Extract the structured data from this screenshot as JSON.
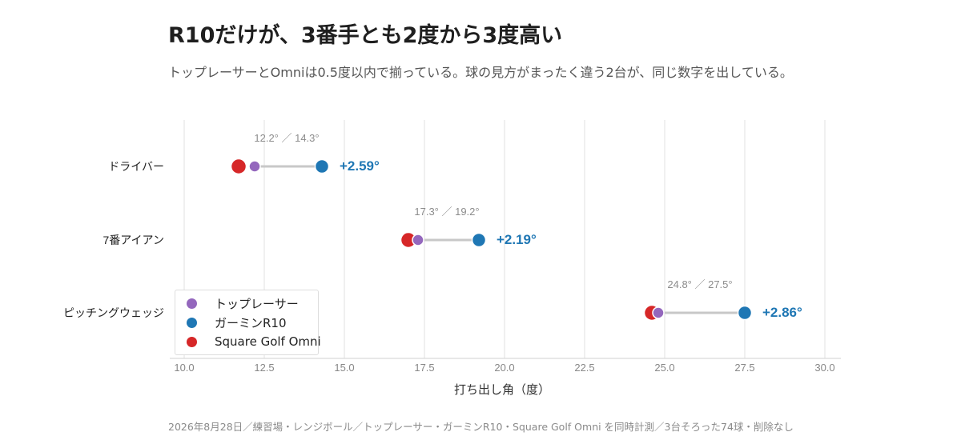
{
  "title": "R10だけが、3番手とも2度から3度高い",
  "subtitle": "トップレーサーとOmniは0.5度以内で揃っている。球の見方がまったく違う2台が、同じ数字を出している。",
  "footnote": "2026年8月28日／練習場・レンジボール／トップレーサー・ガーミンR10・Square Golf Omni を同時計測／3台そろった74球・削除なし",
  "legend": {
    "items": [
      {
        "label": "トップレーサー",
        "color": "#9467bd"
      },
      {
        "label": "ガーミンR10",
        "color": "#1f77b4"
      },
      {
        "label": "Square Golf Omni",
        "color": "#d62728"
      }
    ]
  },
  "chart_data": {
    "type": "dot",
    "xlabel": "打ち出し角（度）",
    "xlim": [
      9.8,
      30.5
    ],
    "xticks": [
      "10.0",
      "12.5",
      "15.0",
      "17.5",
      "20.0",
      "22.5",
      "25.0",
      "27.5",
      "30.0"
    ],
    "grid": true,
    "legend_position": "bottom-left",
    "categories": [
      "ドライバー",
      "7番アイアン",
      "ピッチングウェッジ"
    ],
    "series": [
      {
        "name": "トップレーサー",
        "color": "#9467bd",
        "values": [
          12.2,
          17.3,
          24.8
        ]
      },
      {
        "name": "ガーミンR10",
        "color": "#1f77b4",
        "values": [
          14.3,
          19.2,
          27.5
        ]
      },
      {
        "name": "Square Golf Omni",
        "color": "#d62728",
        "values": [
          11.7,
          17.0,
          24.6
        ]
      }
    ],
    "annotations": [
      {
        "category": "ドライバー",
        "pair_label": "12.2° ／ 14.3°",
        "diff_label": "+2.59°"
      },
      {
        "category": "7番アイアン",
        "pair_label": "17.3° ／ 19.2°",
        "diff_label": "+2.19°"
      },
      {
        "category": "ピッチングウェッジ",
        "pair_label": "24.8° ／ 27.5°",
        "diff_label": "+2.86°"
      }
    ],
    "colors": {
      "diff_text": "#1f77b4",
      "connector": "#c8c8c8",
      "grid": "#e2e2e2",
      "tick_text": "#888888"
    }
  }
}
